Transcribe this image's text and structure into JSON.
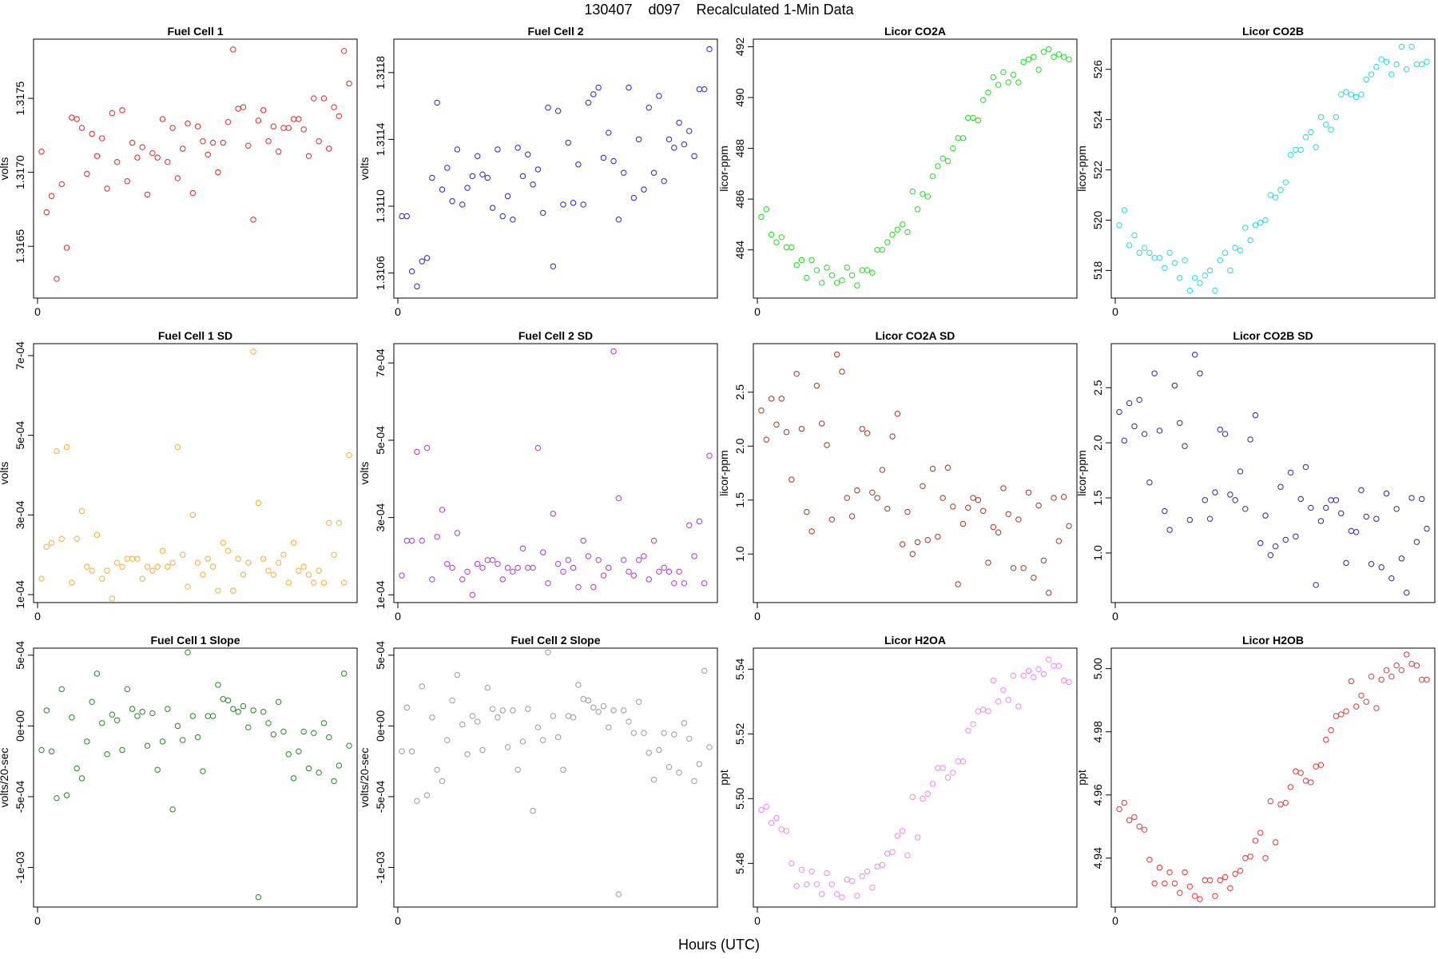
{
  "figure": {
    "title": "130407    d097    Recalculated 1-Min Data",
    "xlabel": "Hours (UTC)"
  },
  "chart_data": [
    {
      "type": "scatter",
      "title": "Fuel Cell 1",
      "ylabel": "volts",
      "ylim": [
        1.31615,
        1.3179
      ],
      "yticks": [
        1.3165,
        1.317,
        1.3175
      ],
      "ytick_labels": [
        "1.3165",
        "1.3170",
        "1.3175"
      ],
      "xticks": [
        0
      ],
      "xtick_labels": [
        "0"
      ],
      "color": "#ee2222",
      "y": [
        1.31714,
        1.31673,
        1.31684,
        1.31628,
        1.31692,
        1.31649,
        1.31737,
        1.31736,
        1.3173,
        1.31699,
        1.31726,
        1.31711,
        1.31723,
        1.31689,
        1.3174,
        1.31707,
        1.31742,
        1.31694,
        1.3172,
        1.3171,
        1.31717,
        1.31685,
        1.31713,
        1.3171,
        1.31736,
        1.31707,
        1.3173,
        1.31696,
        1.31716,
        1.31733,
        1.31686,
        1.31731,
        1.31721,
        1.31712,
        1.3172,
        1.317,
        1.3172,
        1.31734,
        1.31783,
        1.31743,
        1.31744,
        1.31718,
        1.31668,
        1.31735,
        1.31742,
        1.31721,
        1.31731,
        1.31714,
        1.3173,
        1.3173,
        1.31736,
        1.31736,
        1.31729,
        1.31711,
        1.3175,
        1.31721,
        1.3175,
        1.31716,
        1.31744,
        1.31738,
        1.31782,
        1.3176
      ]
    },
    {
      "type": "scatter",
      "title": "Fuel Cell 2",
      "ylabel": "volts",
      "ylim": [
        1.31045,
        1.312
      ],
      "yticks": [
        1.3106,
        1.311,
        1.3114,
        1.3118
      ],
      "ytick_labels": [
        "1.3106",
        "1.3110",
        "1.3114",
        "1.3118"
      ],
      "xticks": [
        0
      ],
      "xtick_labels": [
        "0"
      ],
      "color": "#2222dd",
      "y": [
        1.31094,
        1.31094,
        1.31061,
        1.31052,
        1.31067,
        1.31069,
        1.31117,
        1.31162,
        1.3111,
        1.31123,
        1.31103,
        1.31134,
        1.31101,
        1.31111,
        1.31118,
        1.3113,
        1.31119,
        1.31117,
        1.31099,
        1.31134,
        1.31094,
        1.31106,
        1.31092,
        1.31135,
        1.31118,
        1.31131,
        1.31113,
        1.31122,
        1.31096,
        1.31159,
        1.31064,
        1.31157,
        1.31101,
        1.31138,
        1.31102,
        1.31125,
        1.31101,
        1.31162,
        1.31167,
        1.31171,
        1.31129,
        1.31144,
        1.31127,
        1.31092,
        1.3112,
        1.31171,
        1.31105,
        1.3114,
        1.3111,
        1.31159,
        1.3112,
        1.31166,
        1.31115,
        1.3114,
        1.31135,
        1.3115,
        1.31137,
        1.31145,
        1.3113,
        1.3117,
        1.3117,
        1.31194
      ]
    },
    {
      "type": "scatter",
      "title": "Licor CO2A",
      "ylabel": "licor-ppm",
      "ylim": [
        482.1,
        492.3
      ],
      "yticks": [
        484,
        486,
        488,
        490,
        492
      ],
      "ytick_labels": [
        "484",
        "486",
        "488",
        "490",
        "492"
      ],
      "xticks": [
        0
      ],
      "xtick_labels": [
        "0"
      ],
      "color": "#22dd22",
      "y": [
        485.3,
        485.6,
        484.6,
        484.3,
        484.5,
        484.1,
        484.1,
        483.4,
        483.6,
        482.9,
        483.6,
        483.2,
        482.7,
        483.3,
        483.0,
        482.7,
        482.8,
        483.3,
        483.0,
        482.6,
        483.2,
        483.2,
        483.1,
        484.0,
        484.0,
        484.3,
        484.6,
        484.8,
        485.0,
        484.7,
        486.3,
        485.6,
        486.2,
        486.1,
        486.9,
        487.3,
        487.6,
        487.5,
        488.0,
        488.4,
        488.4,
        489.2,
        489.2,
        489.1,
        489.9,
        490.2,
        490.8,
        490.5,
        491.0,
        490.6,
        490.9,
        490.6,
        491.4,
        491.5,
        491.6,
        491.1,
        491.8,
        491.9,
        491.6,
        491.7,
        491.6,
        491.5
      ]
    },
    {
      "type": "scatter",
      "title": "Licor CO2B",
      "ylabel": "licor-ppm",
      "ylim": [
        516.9,
        527.2
      ],
      "yticks": [
        518,
        520,
        522,
        524,
        526
      ],
      "ytick_labels": [
        "518",
        "520",
        "522",
        "524",
        "526"
      ],
      "xticks": [
        0
      ],
      "xtick_labels": [
        "0"
      ],
      "color": "#22dddd",
      "y": [
        519.8,
        520.4,
        519.0,
        519.4,
        518.7,
        518.9,
        518.7,
        518.5,
        518.5,
        518.1,
        518.7,
        518.3,
        517.7,
        518.4,
        517.2,
        517.7,
        517.5,
        517.8,
        518.0,
        517.2,
        518.4,
        518.7,
        518.0,
        518.9,
        518.8,
        519.7,
        519.2,
        519.8,
        519.9,
        520.0,
        521.0,
        520.9,
        521.2,
        521.5,
        522.6,
        522.8,
        522.8,
        523.3,
        523.5,
        522.9,
        524.1,
        523.8,
        523.6,
        524.1,
        525.0,
        525.1,
        525.0,
        524.9,
        525.0,
        525.6,
        525.8,
        526.1,
        526.4,
        526.3,
        525.8,
        526.2,
        526.9,
        526.0,
        526.9,
        526.2,
        526.2,
        526.3
      ]
    },
    {
      "type": "scatter",
      "title": "Fuel Cell 1 SD",
      "ylabel": "volts",
      "ylim": [
        8e-05,
        0.00073
      ],
      "yticks": [
        0.0001,
        0.0003,
        0.0005,
        0.0007
      ],
      "ytick_labels": [
        "1e-04",
        "3e-04",
        "5e-04",
        "7e-04"
      ],
      "xticks": [
        0
      ],
      "xtick_labels": [
        "0"
      ],
      "color": "#ffaa33",
      "y": [
        0.00014,
        0.00022,
        0.00023,
        0.00046,
        0.00024,
        0.00047,
        0.00013,
        0.00024,
        0.00031,
        0.00017,
        0.00016,
        0.00025,
        0.00014,
        0.00016,
        9e-05,
        0.00018,
        0.00017,
        0.00019,
        0.00019,
        0.00019,
        0.00014,
        0.00017,
        0.00016,
        0.00017,
        0.00021,
        0.00017,
        0.00018,
        0.00047,
        0.0002,
        0.00012,
        0.0003,
        0.00018,
        0.00015,
        0.00019,
        0.00017,
        0.00011,
        0.00023,
        0.00021,
        0.00011,
        0.00019,
        0.00015,
        0.00018,
        0.00071,
        0.00033,
        0.00019,
        0.00016,
        0.00015,
        0.00018,
        0.0002,
        0.00013,
        0.00023,
        0.00016,
        0.00017,
        0.00015,
        0.00013,
        0.00016,
        0.00013,
        0.00028,
        0.0002,
        0.00028,
        0.00013,
        0.00045
      ]
    },
    {
      "type": "scatter",
      "title": "Fuel Cell 2 SD",
      "ylabel": "volts",
      "ylim": [
        8e-05,
        0.00075
      ],
      "yticks": [
        0.0001,
        0.0003,
        0.0005,
        0.0007
      ],
      "ytick_labels": [
        "1e-04",
        "3e-04",
        "5e-04",
        "7e-04"
      ],
      "xticks": [
        0
      ],
      "xtick_labels": [
        "0"
      ],
      "color": "#aa33dd",
      "y": [
        0.00015,
        0.00024,
        0.00024,
        0.00047,
        0.00024,
        0.00048,
        0.00014,
        0.00025,
        0.00032,
        0.00018,
        0.00017,
        0.00026,
        0.00014,
        0.00016,
        0.0001,
        0.00018,
        0.00017,
        0.00019,
        0.00019,
        0.00018,
        0.00014,
        0.00017,
        0.00016,
        0.00017,
        0.00022,
        0.00017,
        0.00017,
        0.00048,
        0.00021,
        0.00013,
        0.00031,
        0.00018,
        0.00016,
        0.00019,
        0.00017,
        0.00012,
        0.00024,
        0.0002,
        0.00012,
        0.00019,
        0.00015,
        0.00017,
        0.00073,
        0.00035,
        0.00019,
        0.00016,
        0.00015,
        0.00019,
        0.0002,
        0.00014,
        0.00024,
        0.00016,
        0.00017,
        0.00016,
        0.00013,
        0.00016,
        0.00013,
        0.00028,
        0.0002,
        0.00029,
        0.00013,
        0.00046
      ]
    },
    {
      "type": "scatter",
      "title": "Licor CO2A SD",
      "ylabel": "licor-ppm",
      "ylim": [
        0.55,
        2.95
      ],
      "yticks": [
        1.0,
        1.5,
        2.0,
        2.5
      ],
      "ytick_labels": [
        "1.0",
        "1.5",
        "2.0",
        "2.5"
      ],
      "xticks": [
        0
      ],
      "xtick_labels": [
        "0"
      ],
      "color": "#aa3322",
      "y": [
        2.33,
        2.06,
        2.44,
        2.2,
        2.44,
        2.13,
        1.69,
        2.67,
        2.16,
        1.39,
        1.21,
        2.56,
        2.21,
        2.01,
        1.32,
        2.85,
        2.69,
        1.52,
        1.35,
        1.59,
        2.16,
        2.12,
        1.57,
        1.52,
        1.78,
        1.42,
        2.09,
        2.3,
        1.09,
        1.39,
        1.0,
        1.11,
        1.63,
        1.13,
        1.79,
        1.16,
        1.52,
        1.8,
        1.44,
        0.72,
        1.28,
        1.43,
        1.52,
        1.5,
        1.4,
        0.92,
        1.25,
        1.2,
        1.61,
        1.37,
        0.87,
        1.32,
        0.87,
        1.57,
        0.78,
        1.45,
        0.94,
        0.64,
        1.52,
        1.12,
        1.53,
        1.26
      ]
    },
    {
      "type": "scatter",
      "title": "Licor CO2B SD",
      "ylabel": "licor-ppm",
      "ylim": [
        0.55,
        2.9
      ],
      "yticks": [
        1.0,
        1.5,
        2.0,
        2.5
      ],
      "ytick_labels": [
        "1.0",
        "1.5",
        "2.0",
        "2.5"
      ],
      "xticks": [
        0
      ],
      "xtick_labels": [
        "0"
      ],
      "color": "#332299",
      "y": [
        2.28,
        2.02,
        2.36,
        2.15,
        2.39,
        2.08,
        1.64,
        2.63,
        2.11,
        1.38,
        1.21,
        2.52,
        2.18,
        1.97,
        1.3,
        2.8,
        2.63,
        1.48,
        1.31,
        1.55,
        2.12,
        2.08,
        1.53,
        1.48,
        1.74,
        1.4,
        2.03,
        2.25,
        1.09,
        1.34,
        0.98,
        1.06,
        1.6,
        1.12,
        1.73,
        1.15,
        1.49,
        1.78,
        1.41,
        0.71,
        1.29,
        1.41,
        1.48,
        1.48,
        1.36,
        0.91,
        1.2,
        1.19,
        1.57,
        1.33,
        0.9,
        1.31,
        0.87,
        1.54,
        0.77,
        1.4,
        0.95,
        0.64,
        1.5,
        1.1,
        1.49,
        1.22
      ]
    },
    {
      "type": "scatter",
      "title": "Fuel Cell 1 Slope",
      "ylabel": "volts/20-sec",
      "ylim": [
        -0.00128,
        0.00055
      ],
      "yticks": [
        -0.001,
        -0.0005,
        0.0,
        0.0005
      ],
      "ytick_labels": [
        "-1e-03",
        "-5e-04",
        "0e+00",
        "5e-04"
      ],
      "xticks": [
        0
      ],
      "xtick_labels": [
        "0"
      ],
      "color": "#228822",
      "y": [
        -0.00017,
        0.00011,
        -0.00018,
        -0.00051,
        0.00026,
        -0.00049,
        6e-05,
        -0.0003,
        -0.00037,
        -0.00011,
        0.00017,
        0.00037,
        2e-05,
        -0.0002,
        8e-05,
        4e-05,
        -0.00017,
        0.00026,
        0.00012,
        7e-05,
        0.0001,
        -0.00014,
        9e-05,
        -0.00031,
        -0.00011,
        0.00012,
        -0.00059,
        0.0,
        -0.0001,
        0.00052,
        7e-05,
        -8e-05,
        -0.00032,
        7e-05,
        7e-05,
        0.00029,
        0.00019,
        0.00018,
        0.00012,
        0.0001,
        0.00014,
        -1e-05,
        0.00011,
        -0.00121,
        0.0001,
        2e-05,
        -6e-05,
        0.00017,
        -4e-05,
        -0.0002,
        -0.00037,
        -0.00018,
        -4e-05,
        -0.0003,
        -5e-05,
        -0.00033,
        2e-05,
        -8e-05,
        -0.00039,
        -0.00028,
        0.00037,
        -0.00014
      ]
    },
    {
      "type": "scatter",
      "title": "Fuel Cell 2 Slope",
      "ylabel": "volts/20-sec",
      "ylim": [
        -0.00128,
        0.00055
      ],
      "yticks": [
        -0.001,
        -0.0005,
        0.0,
        0.0005
      ],
      "ytick_labels": [
        "-1e-03",
        "-5e-04",
        "0e+00",
        "5e-04"
      ],
      "xticks": [
        0
      ],
      "xtick_labels": [
        "0"
      ],
      "color": "#999999",
      "y": [
        -0.00018,
        0.00013,
        -0.00018,
        -0.00053,
        0.00028,
        -0.00049,
        6e-05,
        -0.00031,
        -0.00039,
        -0.0001,
        0.00018,
        0.00036,
        1e-05,
        -0.0002,
        7e-05,
        3e-05,
        -0.00017,
        0.00027,
        0.00012,
        6e-05,
        0.00011,
        -0.00015,
        0.00011,
        -0.00031,
        -0.00011,
        0.00012,
        -0.0006,
        -1e-05,
        -0.0001,
        0.00052,
        7e-05,
        -8e-05,
        -0.00031,
        7e-05,
        6e-05,
        0.00029,
        0.00019,
        0.00018,
        0.00013,
        0.0001,
        0.00014,
        -1e-05,
        0.00011,
        -0.00119,
        0.00011,
        3e-05,
        -5e-05,
        0.00017,
        -5e-05,
        -0.00019,
        -0.00038,
        -0.00017,
        -5e-05,
        -0.00029,
        -6e-05,
        -0.00033,
        2e-05,
        -9e-05,
        -0.00039,
        -0.00027,
        0.00039,
        -0.00015
      ]
    },
    {
      "type": "scatter",
      "title": "Licor H2OA",
      "ylabel": "ppt",
      "ylim": [
        5.4665,
        5.5465
      ],
      "yticks": [
        5.48,
        5.5,
        5.52,
        5.54
      ],
      "ytick_labels": [
        "5.48",
        "5.50",
        "5.52",
        "5.54"
      ],
      "xticks": [
        0
      ],
      "xtick_labels": [
        "0"
      ],
      "color": "#ee88ee",
      "y": [
        5.4965,
        5.4975,
        5.4925,
        5.494,
        5.4905,
        5.49,
        5.48,
        5.473,
        5.478,
        5.4735,
        5.4775,
        5.4735,
        5.4705,
        5.477,
        5.4735,
        5.4705,
        5.4695,
        5.475,
        5.4745,
        5.47,
        5.476,
        5.4775,
        5.4725,
        5.479,
        5.4795,
        5.483,
        5.4835,
        5.4885,
        5.49,
        5.4825,
        5.5005,
        5.488,
        5.5,
        5.5015,
        5.5045,
        5.5095,
        5.5095,
        5.5065,
        5.508,
        5.5115,
        5.5115,
        5.521,
        5.523,
        5.527,
        5.5275,
        5.527,
        5.5365,
        5.53,
        5.5335,
        5.5305,
        5.538,
        5.5285,
        5.538,
        5.5395,
        5.5375,
        5.54,
        5.5385,
        5.543,
        5.541,
        5.541,
        5.5365,
        5.536
      ]
    },
    {
      "type": "scatter",
      "title": "Licor H2OB",
      "ylabel": "ppt",
      "ylim": [
        4.9245,
        5.0065
      ],
      "yticks": [
        4.94,
        4.96,
        4.98,
        5.0
      ],
      "ytick_labels": [
        "4.94",
        "4.96",
        "4.98",
        "5.00"
      ],
      "xticks": [
        0
      ],
      "xtick_labels": [
        "0"
      ],
      "color": "#ee3333",
      "y": [
        4.9555,
        4.9575,
        4.952,
        4.953,
        4.95,
        4.949,
        4.9395,
        4.932,
        4.937,
        4.932,
        4.9355,
        4.932,
        4.929,
        4.9355,
        4.931,
        4.928,
        4.927,
        4.933,
        4.933,
        4.928,
        4.933,
        4.934,
        4.9305,
        4.935,
        4.936,
        4.94,
        4.9405,
        4.9455,
        4.948,
        4.94,
        4.958,
        4.945,
        4.957,
        4.9575,
        4.9625,
        4.9675,
        4.967,
        4.9645,
        4.964,
        4.969,
        4.9695,
        4.9775,
        4.9805,
        4.985,
        4.9855,
        4.9865,
        4.996,
        4.988,
        4.9915,
        4.9895,
        4.9975,
        4.9875,
        4.9965,
        4.9995,
        4.9975,
        5.001,
        4.9995,
        5.0045,
        5.0015,
        5.001,
        4.9965,
        4.9965
      ]
    }
  ]
}
